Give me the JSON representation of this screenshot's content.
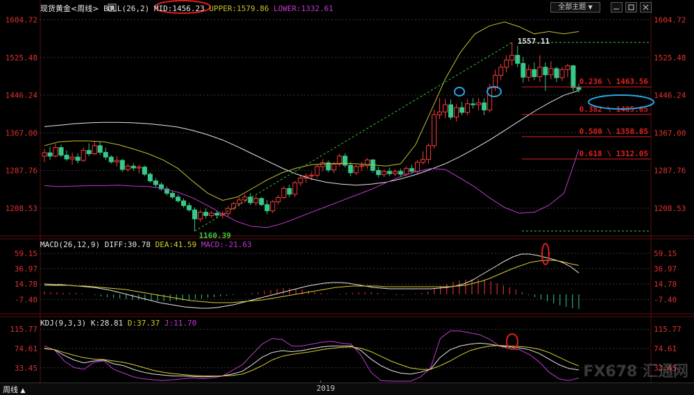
{
  "header": {
    "title": "现货黄金<周线>",
    "boll_label": "BOLL(26,2)",
    "mid": "MID:1456.23",
    "upper": "UPPER:1579.86",
    "lower": "LOWER:1332.61",
    "theme_button": "全部主题",
    "theme_arrow": "▼"
  },
  "macd_header": {
    "label": "MACD(26,12,9)",
    "diff": "DIFF:30.78",
    "dea": "DEA:41.59",
    "macd": "MACD:-21.63"
  },
  "kdj_header": {
    "label": "KDJ(9,3,3)",
    "k": "K:28.81",
    "d": "D:37.37",
    "j": "J:11.70"
  },
  "bottom": {
    "period": "周线",
    "period_arrow": "▲",
    "year": "2019"
  },
  "watermark": "FX678 汇通网",
  "colors": {
    "up": "#ff3c3c",
    "down": "#36c98a",
    "mid": "#e8e8e8",
    "upper": "#c8c230",
    "lower": "#c23ad0",
    "fib": "#e02020",
    "grid": "#3a3a3a",
    "axis_text": "#e03030",
    "annot_red": "#e02020",
    "annot_blue": "#2aa7e8"
  },
  "chart_data": [
    {
      "type": "candlestick",
      "title": "现货黄金<周线>",
      "y_ticks": [
        "1604.72",
        "1525.48",
        "1446.24",
        "1367.00",
        "1287.76",
        "1208.53"
      ],
      "ylim": [
        1150,
        1620
      ],
      "x_tick": "2019",
      "candles": [
        {
          "o": 1318,
          "h": 1333,
          "l": 1305,
          "c": 1325
        },
        {
          "o": 1325,
          "h": 1338,
          "l": 1310,
          "c": 1318
        },
        {
          "o": 1318,
          "h": 1344,
          "l": 1315,
          "c": 1336
        },
        {
          "o": 1336,
          "h": 1342,
          "l": 1316,
          "c": 1320
        },
        {
          "o": 1320,
          "h": 1330,
          "l": 1308,
          "c": 1312
        },
        {
          "o": 1312,
          "h": 1325,
          "l": 1300,
          "c": 1316
        },
        {
          "o": 1316,
          "h": 1324,
          "l": 1303,
          "c": 1309
        },
        {
          "o": 1309,
          "h": 1336,
          "l": 1306,
          "c": 1330
        },
        {
          "o": 1330,
          "h": 1345,
          "l": 1318,
          "c": 1323
        },
        {
          "o": 1323,
          "h": 1350,
          "l": 1320,
          "c": 1340
        },
        {
          "o": 1340,
          "h": 1348,
          "l": 1320,
          "c": 1326
        },
        {
          "o": 1326,
          "h": 1336,
          "l": 1310,
          "c": 1316
        },
        {
          "o": 1316,
          "h": 1320,
          "l": 1302,
          "c": 1306
        },
        {
          "o": 1306,
          "h": 1318,
          "l": 1296,
          "c": 1309
        },
        {
          "o": 1309,
          "h": 1312,
          "l": 1285,
          "c": 1290
        },
        {
          "o": 1290,
          "h": 1302,
          "l": 1285,
          "c": 1297
        },
        {
          "o": 1297,
          "h": 1303,
          "l": 1287,
          "c": 1293
        },
        {
          "o": 1293,
          "h": 1300,
          "l": 1282,
          "c": 1295
        },
        {
          "o": 1295,
          "h": 1298,
          "l": 1276,
          "c": 1280
        },
        {
          "o": 1280,
          "h": 1284,
          "l": 1262,
          "c": 1266
        },
        {
          "o": 1266,
          "h": 1272,
          "l": 1253,
          "c": 1258
        },
        {
          "o": 1258,
          "h": 1263,
          "l": 1245,
          "c": 1249
        },
        {
          "o": 1249,
          "h": 1254,
          "l": 1235,
          "c": 1240
        },
        {
          "o": 1240,
          "h": 1246,
          "l": 1228,
          "c": 1232
        },
        {
          "o": 1232,
          "h": 1238,
          "l": 1220,
          "c": 1224
        },
        {
          "o": 1224,
          "h": 1229,
          "l": 1210,
          "c": 1214
        },
        {
          "o": 1214,
          "h": 1220,
          "l": 1201,
          "c": 1205
        },
        {
          "o": 1205,
          "h": 1210,
          "l": 1160,
          "c": 1186
        },
        {
          "o": 1186,
          "h": 1205,
          "l": 1180,
          "c": 1200
        },
        {
          "o": 1200,
          "h": 1208,
          "l": 1187,
          "c": 1193
        },
        {
          "o": 1193,
          "h": 1203,
          "l": 1188,
          "c": 1198
        },
        {
          "o": 1198,
          "h": 1203,
          "l": 1188,
          "c": 1194
        },
        {
          "o": 1194,
          "h": 1202,
          "l": 1186,
          "c": 1197
        },
        {
          "o": 1197,
          "h": 1213,
          "l": 1190,
          "c": 1208
        },
        {
          "o": 1208,
          "h": 1222,
          "l": 1204,
          "c": 1218
        },
        {
          "o": 1218,
          "h": 1232,
          "l": 1212,
          "c": 1226
        },
        {
          "o": 1226,
          "h": 1238,
          "l": 1220,
          "c": 1232
        },
        {
          "o": 1232,
          "h": 1240,
          "l": 1215,
          "c": 1220
        },
        {
          "o": 1220,
          "h": 1234,
          "l": 1214,
          "c": 1229
        },
        {
          "o": 1229,
          "h": 1232,
          "l": 1213,
          "c": 1216
        },
        {
          "o": 1216,
          "h": 1226,
          "l": 1196,
          "c": 1203
        },
        {
          "o": 1203,
          "h": 1226,
          "l": 1198,
          "c": 1222
        },
        {
          "o": 1222,
          "h": 1236,
          "l": 1216,
          "c": 1231
        },
        {
          "o": 1231,
          "h": 1255,
          "l": 1228,
          "c": 1250
        },
        {
          "o": 1250,
          "h": 1258,
          "l": 1232,
          "c": 1238
        },
        {
          "o": 1238,
          "h": 1266,
          "l": 1232,
          "c": 1262
        },
        {
          "o": 1262,
          "h": 1278,
          "l": 1255,
          "c": 1272
        },
        {
          "o": 1272,
          "h": 1282,
          "l": 1262,
          "c": 1276
        },
        {
          "o": 1276,
          "h": 1285,
          "l": 1267,
          "c": 1278
        },
        {
          "o": 1278,
          "h": 1302,
          "l": 1272,
          "c": 1296
        },
        {
          "o": 1296,
          "h": 1312,
          "l": 1286,
          "c": 1304
        },
        {
          "o": 1304,
          "h": 1309,
          "l": 1284,
          "c": 1289
        },
        {
          "o": 1289,
          "h": 1306,
          "l": 1282,
          "c": 1301
        },
        {
          "o": 1301,
          "h": 1323,
          "l": 1296,
          "c": 1318
        },
        {
          "o": 1318,
          "h": 1324,
          "l": 1294,
          "c": 1299
        },
        {
          "o": 1299,
          "h": 1306,
          "l": 1276,
          "c": 1283
        },
        {
          "o": 1283,
          "h": 1300,
          "l": 1278,
          "c": 1296
        },
        {
          "o": 1296,
          "h": 1306,
          "l": 1287,
          "c": 1298
        },
        {
          "o": 1298,
          "h": 1314,
          "l": 1291,
          "c": 1310
        },
        {
          "o": 1310,
          "h": 1312,
          "l": 1283,
          "c": 1288
        },
        {
          "o": 1288,
          "h": 1296,
          "l": 1273,
          "c": 1279
        },
        {
          "o": 1279,
          "h": 1289,
          "l": 1274,
          "c": 1286
        },
        {
          "o": 1286,
          "h": 1294,
          "l": 1276,
          "c": 1281
        },
        {
          "o": 1281,
          "h": 1290,
          "l": 1276,
          "c": 1286
        },
        {
          "o": 1286,
          "h": 1292,
          "l": 1274,
          "c": 1280
        },
        {
          "o": 1280,
          "h": 1296,
          "l": 1276,
          "c": 1292
        },
        {
          "o": 1292,
          "h": 1300,
          "l": 1281,
          "c": 1286
        },
        {
          "o": 1286,
          "h": 1310,
          "l": 1281,
          "c": 1305
        },
        {
          "o": 1305,
          "h": 1328,
          "l": 1300,
          "c": 1311
        },
        {
          "o": 1311,
          "h": 1345,
          "l": 1302,
          "c": 1340
        },
        {
          "o": 1340,
          "h": 1415,
          "l": 1334,
          "c": 1405
        },
        {
          "o": 1405,
          "h": 1440,
          "l": 1396,
          "c": 1411
        },
        {
          "o": 1411,
          "h": 1438,
          "l": 1398,
          "c": 1426
        },
        {
          "o": 1426,
          "h": 1437,
          "l": 1395,
          "c": 1400
        },
        {
          "o": 1400,
          "h": 1427,
          "l": 1391,
          "c": 1420
        },
        {
          "o": 1420,
          "h": 1432,
          "l": 1404,
          "c": 1410
        },
        {
          "o": 1410,
          "h": 1438,
          "l": 1404,
          "c": 1428
        },
        {
          "o": 1428,
          "h": 1440,
          "l": 1418,
          "c": 1426
        },
        {
          "o": 1426,
          "h": 1440,
          "l": 1414,
          "c": 1430
        },
        {
          "o": 1430,
          "h": 1440,
          "l": 1404,
          "c": 1415
        },
        {
          "o": 1415,
          "h": 1470,
          "l": 1410,
          "c": 1462
        },
        {
          "o": 1462,
          "h": 1500,
          "l": 1455,
          "c": 1488
        },
        {
          "o": 1488,
          "h": 1512,
          "l": 1478,
          "c": 1505
        },
        {
          "o": 1505,
          "h": 1530,
          "l": 1494,
          "c": 1520
        },
        {
          "o": 1520,
          "h": 1557,
          "l": 1508,
          "c": 1530
        },
        {
          "o": 1530,
          "h": 1550,
          "l": 1505,
          "c": 1513
        },
        {
          "o": 1513,
          "h": 1526,
          "l": 1472,
          "c": 1484
        },
        {
          "o": 1484,
          "h": 1510,
          "l": 1475,
          "c": 1500
        },
        {
          "o": 1500,
          "h": 1515,
          "l": 1478,
          "c": 1485
        },
        {
          "o": 1485,
          "h": 1530,
          "l": 1474,
          "c": 1505
        },
        {
          "o": 1505,
          "h": 1515,
          "l": 1455,
          "c": 1489
        },
        {
          "o": 1489,
          "h": 1518,
          "l": 1480,
          "c": 1502
        },
        {
          "o": 1502,
          "h": 1506,
          "l": 1474,
          "c": 1483
        },
        {
          "o": 1483,
          "h": 1505,
          "l": 1476,
          "c": 1500
        },
        {
          "o": 1500,
          "h": 1512,
          "l": 1484,
          "c": 1508
        },
        {
          "o": 1508,
          "h": 1510,
          "l": 1455,
          "c": 1462
        },
        {
          "o": 1462,
          "h": 1470,
          "l": 1452,
          "c": 1458
        }
      ],
      "mid_line": [
        1380,
        1383,
        1386,
        1388,
        1389,
        1389,
        1388,
        1386,
        1383,
        1379,
        1372,
        1363,
        1352,
        1338,
        1323,
        1308,
        1293,
        1280,
        1270,
        1263,
        1259,
        1257,
        1259,
        1263,
        1270,
        1279,
        1290,
        1302,
        1317,
        1334,
        1352,
        1372,
        1392,
        1412,
        1430,
        1446,
        1456
      ],
      "upper_line": [
        1340,
        1348,
        1350,
        1350,
        1348,
        1342,
        1333,
        1323,
        1310,
        1292,
        1265,
        1240,
        1225,
        1232,
        1250,
        1268,
        1283,
        1293,
        1300,
        1302,
        1303,
        1302,
        1300,
        1297,
        1302,
        1342,
        1410,
        1480,
        1535,
        1575,
        1592,
        1600,
        1590,
        1575,
        1580,
        1575,
        1580
      ],
      "lower_line": [
        1256,
        1254,
        1255,
        1256,
        1256,
        1257,
        1255,
        1254,
        1250,
        1242,
        1230,
        1214,
        1196,
        1180,
        1170,
        1168,
        1176,
        1188,
        1200,
        1212,
        1224,
        1236,
        1248,
        1262,
        1275,
        1285,
        1292,
        1290,
        1272,
        1253,
        1230,
        1210,
        1198,
        1200,
        1215,
        1240,
        1332
      ],
      "annotations": {
        "high": "1557.11",
        "low": "1160.39",
        "fib": [
          "0.236 \\ 1463.56",
          "0.382 \\ 1405.65",
          "0.500 \\ 1358.85",
          "0.618 \\ 1312.05"
        ],
        "fib_values": [
          1463.56,
          1405.65,
          1358.85,
          1312.05
        ],
        "top_dashed": 1557.11,
        "bottom_dashed": 1160.39
      }
    },
    {
      "type": "macd",
      "title": "MACD(26,12,9)",
      "y_ticks": [
        "59.15",
        "36.97",
        "14.78",
        "-7.40"
      ],
      "ylim": [
        -25,
        68
      ],
      "hist": [
        4,
        3,
        3,
        2,
        2,
        2,
        1,
        0,
        -1,
        -3,
        -4,
        -5,
        -6,
        -7,
        -8,
        -8,
        -9,
        -9,
        -10,
        -10,
        -10,
        -9,
        -9,
        -8,
        -7,
        -6,
        -5,
        -4,
        -3,
        -2,
        -1,
        0,
        1,
        2,
        3,
        5,
        6,
        8,
        9,
        9,
        8,
        7,
        5,
        3,
        2,
        1,
        0,
        1,
        2,
        2,
        3,
        3,
        3,
        2,
        1,
        0,
        -1,
        -1,
        0,
        1,
        2,
        4,
        8,
        12,
        15,
        18,
        20,
        21,
        22,
        22,
        21,
        19,
        16,
        13,
        10,
        7,
        3,
        -1,
        -4,
        -7,
        -10,
        -13,
        -16,
        -18,
        -20,
        -21
      ],
      "diff": [
        15,
        14,
        14,
        13,
        12,
        11,
        10,
        8,
        6,
        3,
        0,
        -3,
        -6,
        -9,
        -12,
        -14,
        -16,
        -18,
        -19,
        -20,
        -20,
        -19,
        -17,
        -15,
        -12,
        -9,
        -6,
        -3,
        0,
        3,
        6,
        9,
        12,
        14,
        16,
        17,
        17,
        16,
        14,
        12,
        10,
        9,
        8,
        8,
        8,
        8,
        8,
        8,
        9,
        10,
        12,
        15,
        20,
        27,
        34,
        41,
        48,
        54,
        58,
        58,
        56,
        53,
        50,
        46,
        40,
        30.78
      ],
      "dea": [
        13,
        13,
        13,
        13,
        12,
        12,
        11,
        10,
        9,
        8,
        7,
        5,
        3,
        1,
        -1,
        -3,
        -5,
        -7,
        -9,
        -10,
        -11,
        -12,
        -12,
        -12,
        -11,
        -10,
        -9,
        -8,
        -6,
        -4,
        -2,
        0,
        2,
        4,
        6,
        8,
        10,
        11,
        12,
        12,
        12,
        12,
        11,
        11,
        11,
        11,
        11,
        11,
        11,
        11,
        11,
        12,
        13,
        16,
        19,
        23,
        28,
        33,
        38,
        42,
        46,
        48,
        49,
        49,
        47,
        44,
        41.59
      ]
    },
    {
      "type": "kdj",
      "title": "KDJ(9,3,3)",
      "y_ticks": [
        "115.77",
        "74.61",
        "33.45"
      ],
      "ylim": [
        5,
        125
      ],
      "k": [
        75,
        72,
        60,
        50,
        44,
        48,
        50,
        42,
        38,
        30,
        24,
        20,
        18,
        16,
        16,
        15,
        14,
        15,
        16,
        20,
        26,
        40,
        56,
        66,
        70,
        68,
        70,
        74,
        78,
        80,
        80,
        80,
        70,
        52,
        38,
        28,
        22,
        20,
        24,
        30,
        56,
        72,
        80,
        84,
        86,
        84,
        80,
        78,
        76,
        72,
        64,
        52,
        40,
        32,
        28.81
      ],
      "d": [
        74,
        72,
        66,
        60,
        55,
        52,
        51,
        48,
        45,
        40,
        34,
        28,
        24,
        21,
        19,
        17,
        16,
        16,
        16,
        17,
        20,
        28,
        38,
        50,
        58,
        62,
        65,
        68,
        72,
        75,
        77,
        78,
        75,
        68,
        58,
        48,
        40,
        33,
        30,
        30,
        38,
        48,
        60,
        70,
        76,
        80,
        81,
        80,
        79,
        77,
        73,
        66,
        56,
        46,
        37.37
      ],
      "j": [
        80,
        72,
        48,
        34,
        30,
        45,
        48,
        30,
        22,
        14,
        10,
        8,
        6,
        8,
        10,
        12,
        10,
        12,
        16,
        28,
        40,
        62,
        84,
        96,
        94,
        80,
        80,
        84,
        88,
        90,
        86,
        84,
        60,
        24,
        6,
        0,
        0,
        0,
        14,
        32,
        96,
        112,
        112,
        108,
        104,
        94,
        80,
        74,
        72,
        62,
        46,
        24,
        10,
        6,
        11.7
      ]
    }
  ]
}
